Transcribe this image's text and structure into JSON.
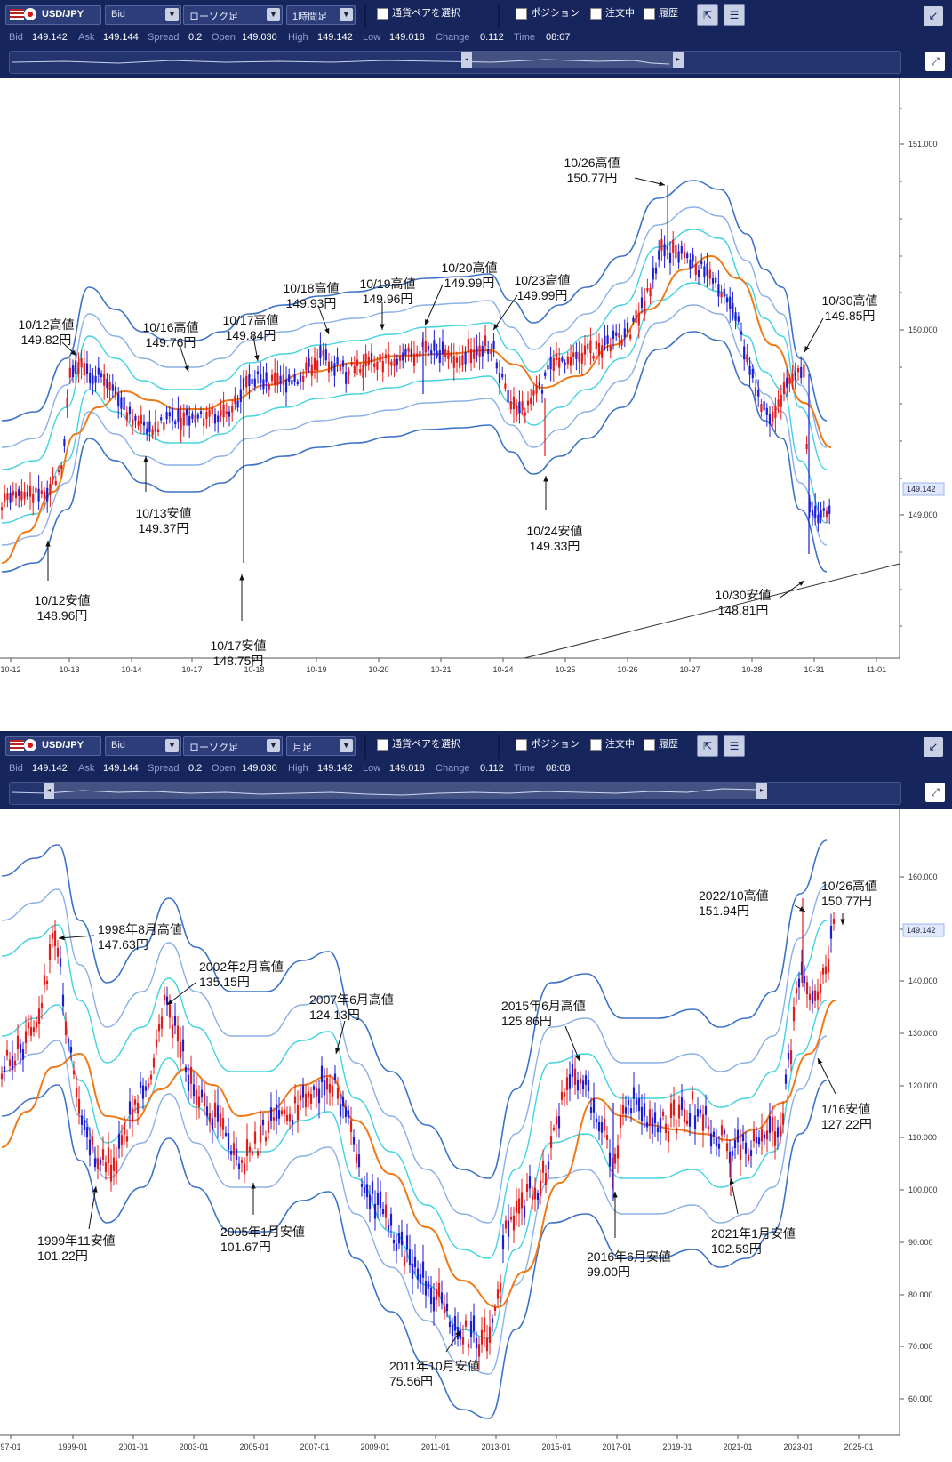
{
  "top": {
    "pair": "USD/JPY",
    "price_type": "Bid",
    "chart_type": "ローソク足",
    "timeframe": "1時間足",
    "select_pair_label": "通貨ペアを選択",
    "position_label": "ポジション",
    "orders_label": "注文中",
    "history_label": "履歴",
    "stats": {
      "bid_label": "Bid",
      "bid": "149.142",
      "ask_label": "Ask",
      "ask": "149.144",
      "spread_label": "Spread",
      "spread": "0.2",
      "open_label": "Open",
      "open": "149.030",
      "high_label": "High",
      "high": "149.142",
      "low_label": "Low",
      "low": "149.018",
      "change_label": "Change",
      "change": "0.112",
      "time_label": "Time",
      "time": "08:07"
    },
    "price_axis": [
      "151.000",
      "150.000",
      "149.000"
    ],
    "current_price_tag": "149.142",
    "date_axis": [
      "10-12",
      "10-13",
      "10-14",
      "10-17",
      "10-18",
      "10-19",
      "10-20",
      "10-21",
      "10-24",
      "10-25",
      "10-26",
      "10-27",
      "10-28",
      "10-31",
      "11-01"
    ],
    "annotations": [
      {
        "l1": "10/12高値",
        "l2": "149.82円"
      },
      {
        "l1": "10/12安値",
        "l2": "148.96円"
      },
      {
        "l1": "10/13安値",
        "l2": "149.37円"
      },
      {
        "l1": "10/16高値",
        "l2": "149.76円"
      },
      {
        "l1": "10/17高値",
        "l2": "149.84円"
      },
      {
        "l1": "10/17安値",
        "l2": "148.75円"
      },
      {
        "l1": "10/18高値",
        "l2": "149.93円"
      },
      {
        "l1": "10/19高値",
        "l2": "149.96円"
      },
      {
        "l1": "10/20高値",
        "l2": "149.99円"
      },
      {
        "l1": "10/23高値",
        "l2": "149.99円"
      },
      {
        "l1": "10/24安値",
        "l2": "149.33円"
      },
      {
        "l1": "10/26高値",
        "l2": "150.77円"
      },
      {
        "l1": "10/30高値",
        "l2": "149.85円"
      },
      {
        "l1": "10/30安値",
        "l2": "148.81円"
      }
    ]
  },
  "bottom": {
    "pair": "USD/JPY",
    "price_type": "Bid",
    "chart_type": "ローソク足",
    "timeframe": "月足",
    "select_pair_label": "通貨ペアを選択",
    "position_label": "ポジション",
    "orders_label": "注文中",
    "history_label": "履歴",
    "stats": {
      "bid_label": "Bid",
      "bid": "149.142",
      "ask_label": "Ask",
      "ask": "149.144",
      "spread_label": "Spread",
      "spread": "0.2",
      "open_label": "Open",
      "open": "149.030",
      "high_label": "High",
      "high": "149.142",
      "low_label": "Low",
      "low": "149.018",
      "change_label": "Change",
      "change": "0.112",
      "time_label": "Time",
      "time": "08:08"
    },
    "price_axis": [
      "160.000",
      "150.000",
      "140.000",
      "130.000",
      "120.000",
      "110.000",
      "100.000",
      "90.000",
      "80.000",
      "70.000",
      "60.000"
    ],
    "current_price_tag": "149.142",
    "date_axis": [
      "97-01",
      "1999-01",
      "2001-01",
      "2003-01",
      "2005-01",
      "2007-01",
      "2009-01",
      "2011-01",
      "2013-01",
      "2015-01",
      "2017-01",
      "2019-01",
      "2021-01",
      "2023-01",
      "2025-01"
    ],
    "annotations": [
      {
        "l1": "1998年8月高値",
        "l2": "147.63円"
      },
      {
        "l1": "1999年11安値",
        "l2": "101.22円"
      },
      {
        "l1": "2002年2月高値",
        "l2": "135.15円"
      },
      {
        "l1": "2005年1月安値",
        "l2": "101.67円"
      },
      {
        "l1": "2007年6月高値",
        "l2": "124.13円"
      },
      {
        "l1": "2011年10月安値",
        "l2": "75.56円"
      },
      {
        "l1": "2015年6月高値",
        "l2": "125.86円"
      },
      {
        "l1": "2016年6月安値",
        "l2": "99.00円"
      },
      {
        "l1": "2021年1月安値",
        "l2": "102.59円"
      },
      {
        "l1": "2022/10高値",
        "l2": "151.94円"
      },
      {
        "l1": "10/26高値",
        "l2": "150.77円"
      },
      {
        "l1": "1/16安値",
        "l2": "127.22円"
      }
    ]
  },
  "colors": {
    "toolbar_bg": "#16255c",
    "candle_up": "#e21b1b",
    "candle_down": "#1d1dd6",
    "band_outer": "#3d72c9",
    "band_mid": "#8ab0e6",
    "band_inner": "#42d3e0",
    "moving_average": "#ef7a1a"
  }
}
